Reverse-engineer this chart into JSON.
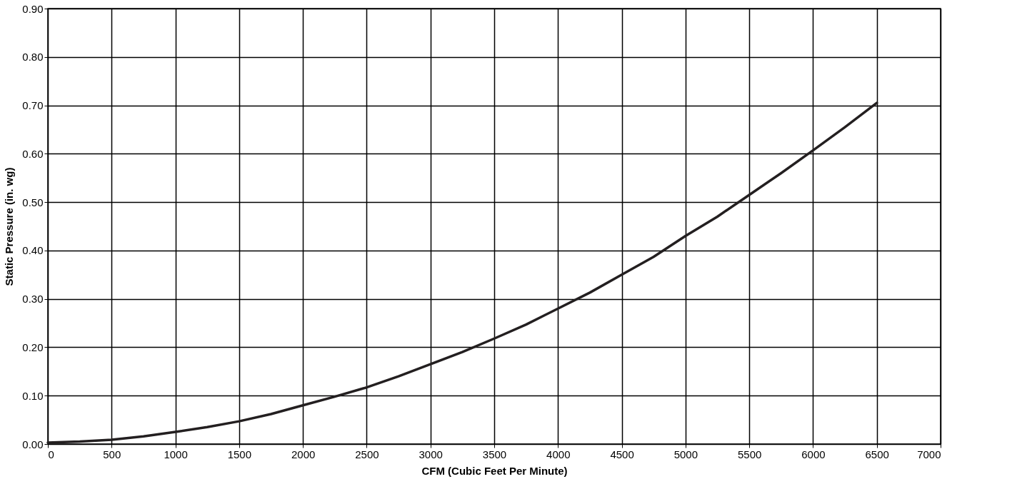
{
  "chart_data": {
    "type": "line",
    "xlabel": "CFM (Cubic Feet Per Minute)",
    "ylabel": "Static Pressure (in. wg)",
    "x": [
      0,
      250,
      500,
      750,
      1000,
      1250,
      1500,
      1750,
      2000,
      2250,
      2500,
      2750,
      3000,
      3250,
      3500,
      3750,
      4000,
      4250,
      4500,
      4750,
      5000,
      5250,
      5500,
      5750,
      6000,
      6250,
      6500
    ],
    "series": [
      {
        "color": "#231f20",
        "values": [
          0.003,
          0.005,
          0.009,
          0.016,
          0.025,
          0.035,
          0.047,
          0.062,
          0.08,
          0.098,
          0.117,
          0.14,
          0.165,
          0.19,
          0.218,
          0.247,
          0.28,
          0.313,
          0.35,
          0.387,
          0.43,
          0.47,
          0.515,
          0.56,
          0.607,
          0.655,
          0.705
        ]
      }
    ],
    "xlim": [
      0,
      7000
    ],
    "xticks": [
      0,
      500,
      1000,
      1500,
      2000,
      2500,
      3000,
      3500,
      4000,
      4500,
      5000,
      5500,
      6000,
      6500,
      7000
    ],
    "ylim": [
      0,
      0.9
    ],
    "yticks": [
      {
        "value": 0,
        "label": "0.00"
      },
      {
        "value": 0.1,
        "label": "0.10"
      },
      {
        "value": 0.2,
        "label": "0.20"
      },
      {
        "value": 0.3,
        "label": "0.30"
      },
      {
        "value": 0.4,
        "label": "0.40"
      },
      {
        "value": 0.5,
        "label": "0.50"
      },
      {
        "value": 0.6,
        "label": "0.60"
      },
      {
        "value": 0.7,
        "label": "0.70"
      },
      {
        "value": 0.8,
        "label": "0.80"
      },
      {
        "value": 0.9,
        "label": "0.90"
      }
    ],
    "grid": true,
    "marker": "none",
    "line_style": "solid"
  }
}
